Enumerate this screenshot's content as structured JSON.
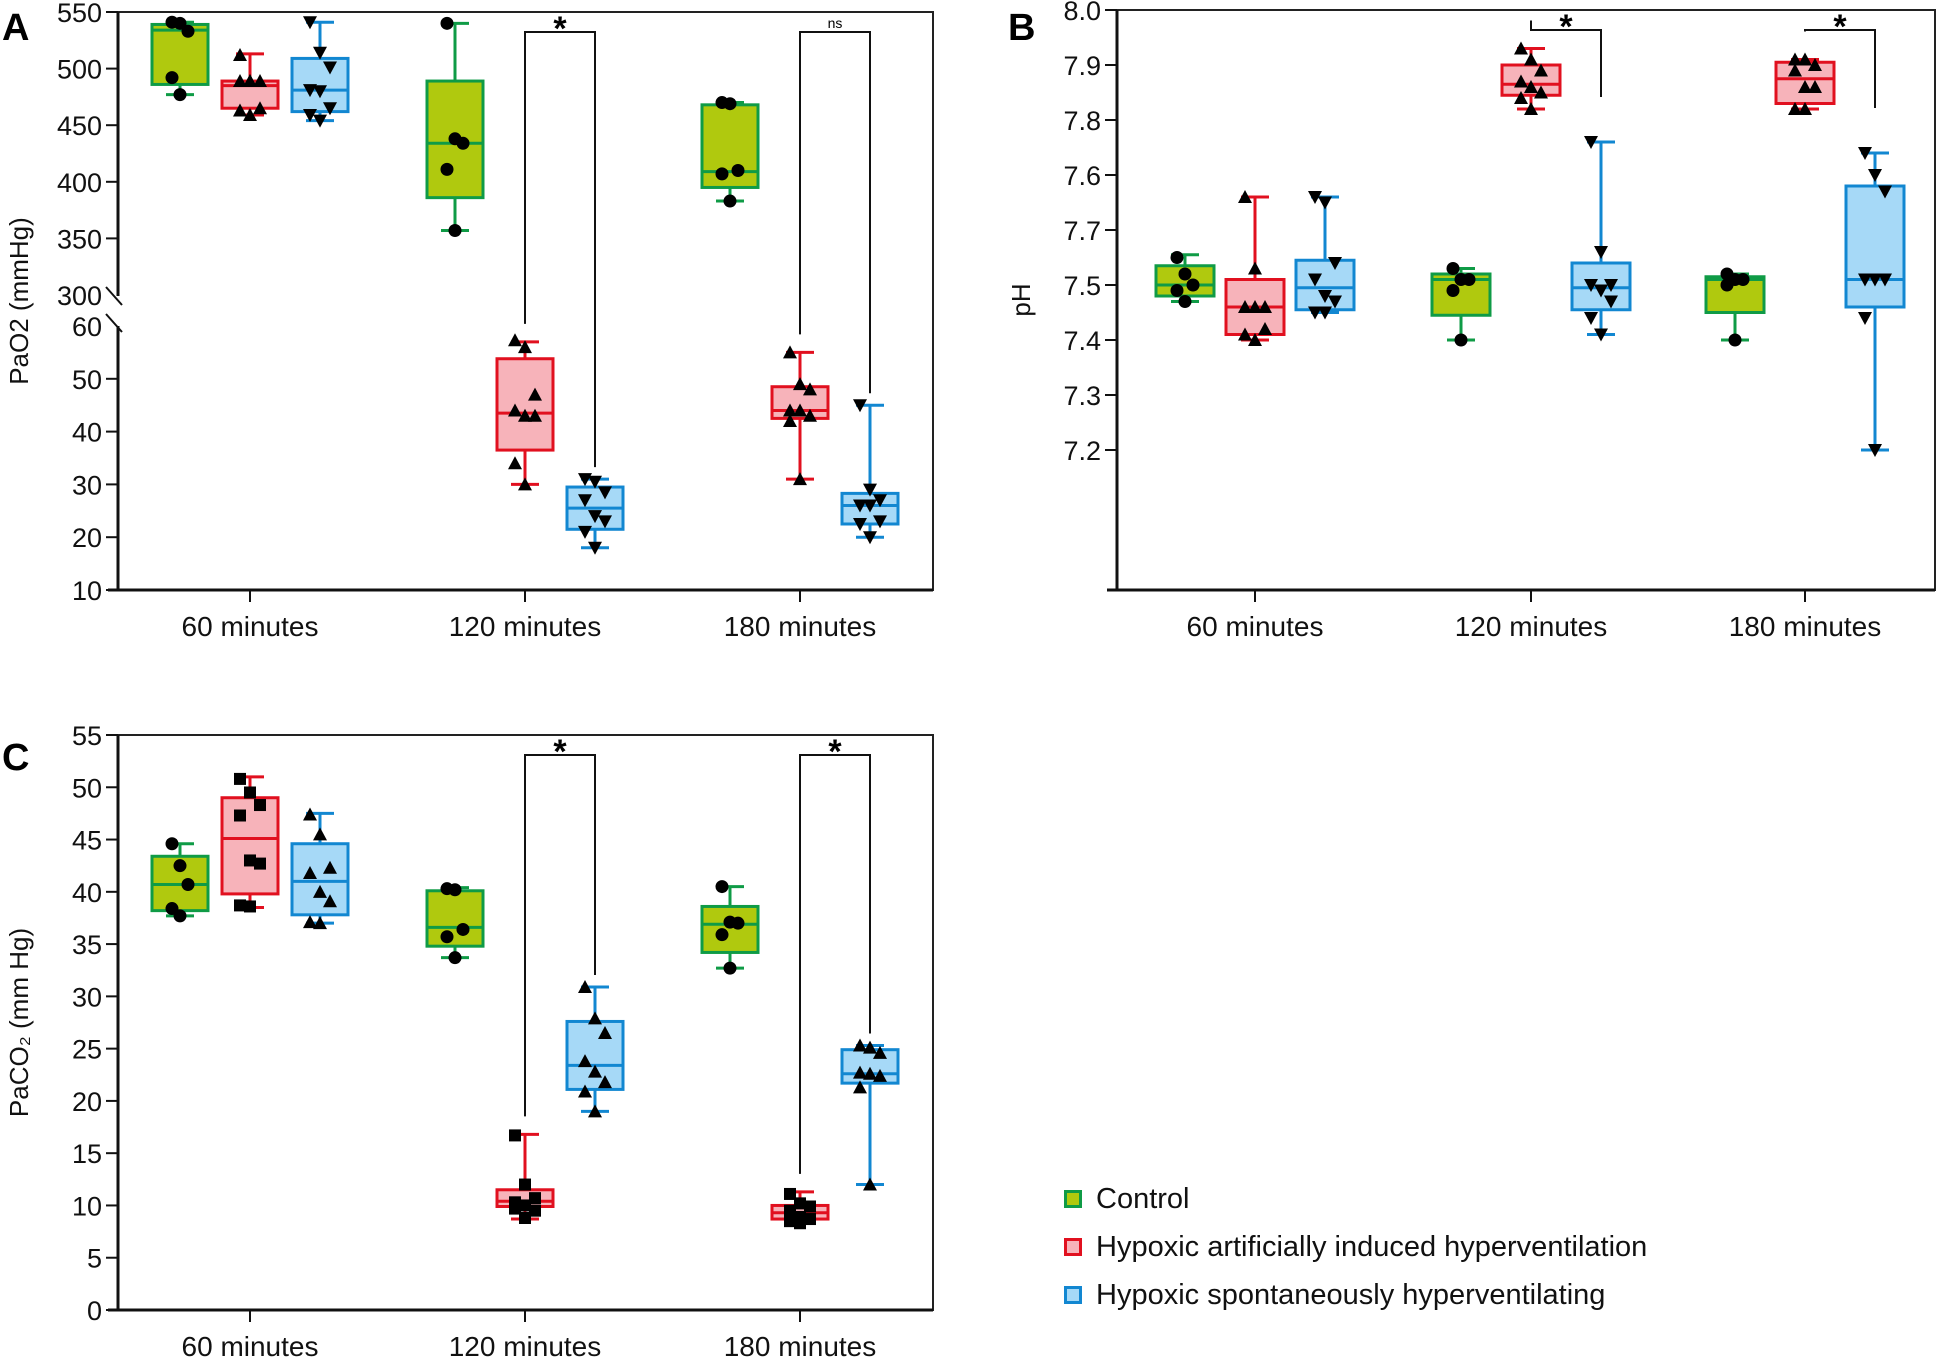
{
  "groups": [
    {
      "name": "Control",
      "fill": "#b0c90e",
      "stroke": "#0f9b46",
      "marker": "circle"
    },
    {
      "name": "Hypoxic artificially induced hyperventilation",
      "fill": "#f7b3ba",
      "stroke": "#e1101f",
      "marker": "triangle-up"
    },
    {
      "name": "Hypoxic spontaneously hyperventilating",
      "fill": "#a6d9f7",
      "stroke": "#1287d1",
      "marker": "triangle-down"
    }
  ],
  "legend": {
    "placement": "bottom-right",
    "items": [
      "Control",
      "Hypoxic artificially induced hyperventilation",
      "Hypoxic spontaneously hyperventilating"
    ]
  },
  "chart_data": [
    {
      "panel": "A",
      "type": "box",
      "title": "",
      "xlabel": "",
      "ylabel": "PaO2 (mmHg)",
      "categories": [
        "60 minutes",
        "120 minutes",
        "180 minutes"
      ],
      "axis_break": {
        "lower_range": [
          10,
          60
        ],
        "upper_range": [
          300,
          550
        ]
      },
      "yticks_lower": [
        "10",
        "20",
        "30",
        "40",
        "50",
        "60"
      ],
      "yticks_upper": [
        "300",
        "350",
        "400",
        "450",
        "500",
        "550"
      ],
      "series": [
        {
          "name": "Control",
          "boxes": [
            {
              "min": 477,
              "q1": 486,
              "median": 534,
              "q3": 539,
              "max": 541,
              "points": [
                541,
                540,
                533,
                492,
                477
              ]
            },
            {
              "min": 357,
              "q1": 386,
              "median": 434,
              "q3": 489,
              "max": 540,
              "points": [
                540,
                438,
                434,
                411,
                357
              ]
            },
            {
              "min": 383,
              "q1": 395,
              "median": 409,
              "q3": 468,
              "max": 470,
              "points": [
                470,
                469,
                410,
                407,
                383
              ]
            }
          ]
        },
        {
          "name": "Hypoxic artificially induced hyperventilation",
          "boxes": [
            {
              "min": 459,
              "q1": 465,
              "median": 485,
              "q3": 489,
              "max": 513,
              "points": [
                512,
                489,
                489,
                489,
                489,
                465,
                463,
                459
              ]
            },
            {
              "min": 30,
              "q1": 36.5,
              "median": 43.5,
              "q3": 53.8,
              "max": 57,
              "points": [
                57.3,
                56,
                47,
                44,
                43,
                43,
                34,
                30
              ]
            },
            {
              "min": 31,
              "q1": 42.5,
              "median": 44,
              "q3": 48.5,
              "max": 55,
              "points": [
                55,
                49,
                48,
                44,
                44,
                43,
                42,
                31
              ]
            }
          ]
        },
        {
          "name": "Hypoxic spontaneously hyperventilating",
          "boxes": [
            {
              "min": 454,
              "q1": 462,
              "median": 481,
              "q3": 509,
              "max": 541,
              "points": [
                541,
                514,
                501,
                481,
                480,
                465,
                459,
                454
              ]
            },
            {
              "min": 18,
              "q1": 21.5,
              "median": 25.5,
              "q3": 29.5,
              "max": 31,
              "points": [
                31,
                30.5,
                28.5,
                27,
                24,
                23,
                21,
                18
              ]
            },
            {
              "min": 20,
              "q1": 22.5,
              "median": 26,
              "q3": 28.3,
              "max": 45,
              "points": [
                45,
                29,
                27,
                26,
                26,
                23,
                22.5,
                20
              ]
            }
          ]
        }
      ],
      "annotations": [
        {
          "category": "120 minutes",
          "between": [
            "Hypoxic artificially induced hyperventilation",
            "Hypoxic spontaneously hyperventilating"
          ],
          "label": "*"
        },
        {
          "category": "180 minutes",
          "between": [
            "Hypoxic artificially induced hyperventilation",
            "Hypoxic spontaneously hyperventilating"
          ],
          "label": "ns"
        }
      ]
    },
    {
      "panel": "B",
      "type": "box",
      "title": "",
      "xlabel": "",
      "ylabel": "pH",
      "categories": [
        "60 minutes",
        "120 minutes",
        "180 minutes"
      ],
      "yticks": [
        "8.0",
        "7.9",
        "7.8",
        "7.6",
        "7.7",
        "7.5",
        "7.4",
        "7.3",
        "7.2"
      ],
      "ylim": [
        7.15,
        8.0
      ],
      "series": [
        {
          "name": "Control",
          "boxes": [
            {
              "min": 7.47,
              "q1": 7.48,
              "median": 7.5,
              "q3": 7.535,
              "max": 7.555,
              "points": [
                7.55,
                7.52,
                7.5,
                7.49,
                7.47
              ]
            },
            {
              "min": 7.4,
              "q1": 7.445,
              "median": 7.51,
              "q3": 7.52,
              "max": 7.53,
              "points": [
                7.53,
                7.51,
                7.51,
                7.49,
                7.4
              ]
            },
            {
              "min": 7.4,
              "q1": 7.45,
              "median": 7.51,
              "q3": 7.515,
              "max": 7.52,
              "points": [
                7.52,
                7.51,
                7.51,
                7.5,
                7.4
              ]
            }
          ]
        },
        {
          "name": "Hypoxic artificially induced hyperventilation",
          "boxes": [
            {
              "min": 7.4,
              "q1": 7.41,
              "median": 7.46,
              "q3": 7.51,
              "max": 7.66,
              "points": [
                7.66,
                7.53,
                7.46,
                7.46,
                7.46,
                7.42,
                7.41,
                7.4
              ]
            },
            {
              "min": 7.82,
              "q1": 7.845,
              "median": 7.865,
              "q3": 7.9,
              "max": 7.93,
              "points": [
                7.93,
                7.91,
                7.89,
                7.87,
                7.86,
                7.85,
                7.84,
                7.82
              ]
            },
            {
              "min": 7.82,
              "q1": 7.83,
              "median": 7.875,
              "q3": 7.905,
              "max": 7.91,
              "points": [
                7.91,
                7.91,
                7.9,
                7.89,
                7.86,
                7.86,
                7.82,
                7.82
              ]
            }
          ]
        },
        {
          "name": "Hypoxic spontaneously hyperventilating",
          "boxes": [
            {
              "min": 7.45,
              "q1": 7.455,
              "median": 7.495,
              "q3": 7.545,
              "max": 7.66,
              "points": [
                7.66,
                7.65,
                7.54,
                7.51,
                7.48,
                7.47,
                7.45,
                7.45
              ]
            },
            {
              "min": 7.41,
              "q1": 7.455,
              "median": 7.495,
              "q3": 7.54,
              "max": 7.76,
              "points": [
                7.76,
                7.56,
                7.5,
                7.5,
                7.49,
                7.47,
                7.44,
                7.41
              ]
            },
            {
              "min": 7.2,
              "q1": 7.46,
              "median": 7.51,
              "q3": 7.68,
              "max": 7.74,
              "points": [
                7.74,
                7.7,
                7.67,
                7.51,
                7.51,
                7.51,
                7.44,
                7.2
              ]
            }
          ]
        }
      ],
      "annotations": [
        {
          "category": "120 minutes",
          "between": [
            "Hypoxic artificially induced hyperventilation",
            "Hypoxic spontaneously hyperventilating"
          ],
          "label": "*"
        },
        {
          "category": "180 minutes",
          "between": [
            "Hypoxic artificially induced hyperventilation",
            "Hypoxic spontaneously hyperventilating"
          ],
          "label": "*"
        }
      ]
    },
    {
      "panel": "C",
      "type": "box",
      "title": "",
      "xlabel": "",
      "ylabel": "PaCO₂ (mm Hg)",
      "categories": [
        "60 minutes",
        "120 minutes",
        "180 minutes"
      ],
      "yticks": [
        "0",
        "5",
        "10",
        "15",
        "20",
        "25",
        "30",
        "35",
        "40",
        "45",
        "50",
        "55"
      ],
      "ylim": [
        0,
        55
      ],
      "series": [
        {
          "name": "Control",
          "boxes": [
            {
              "min": 37.7,
              "q1": 38.2,
              "median": 40.7,
              "q3": 43.4,
              "max": 44.6,
              "points": [
                44.6,
                42.5,
                40.7,
                38.4,
                37.7
              ]
            },
            {
              "min": 33.7,
              "q1": 34.8,
              "median": 36.6,
              "q3": 40.1,
              "max": 40.4,
              "points": [
                40.3,
                40.2,
                36.4,
                35.7,
                33.7
              ]
            },
            {
              "min": 32.7,
              "q1": 34.2,
              "median": 36.9,
              "q3": 38.6,
              "max": 40.5,
              "points": [
                40.5,
                37.1,
                37.0,
                35.9,
                32.7
              ]
            }
          ]
        },
        {
          "name": "Hypoxic artificially induced hyperventilation",
          "boxes": [
            {
              "min": 38.5,
              "q1": 39.8,
              "median": 45.1,
              "q3": 49.0,
              "max": 51.0,
              "points": [
                50.8,
                49.5,
                48.3,
                47.3,
                43.0,
                42.7,
                38.7,
                38.6
              ]
            },
            {
              "min": 8.7,
              "q1": 9.9,
              "median": 10.4,
              "q3": 11.5,
              "max": 16.8,
              "points": [
                16.7,
                12.0,
                10.7,
                10.3,
                10.0,
                9.5,
                9.7,
                8.8
              ]
            },
            {
              "min": 8.3,
              "q1": 8.7,
              "median": 9.3,
              "q3": 10.0,
              "max": 11.3,
              "points": [
                11.1,
                10.2,
                9.9,
                9.5,
                8.9,
                8.7,
                8.5,
                8.3
              ]
            }
          ]
        },
        {
          "name": "Hypoxic spontaneously hyperventilating",
          "boxes": [
            {
              "min": 37.0,
              "q1": 37.8,
              "median": 41.0,
              "q3": 44.6,
              "max": 47.5,
              "points": [
                47.4,
                45.5,
                42.3,
                41.8,
                40.0,
                39.1,
                37.1,
                37.0
              ]
            },
            {
              "min": 19.0,
              "q1": 21.1,
              "median": 23.4,
              "q3": 27.6,
              "max": 30.9,
              "points": [
                30.9,
                27.9,
                26.5,
                23.8,
                22.8,
                21.8,
                20.9,
                19.0
              ]
            },
            {
              "min": 12.0,
              "q1": 21.7,
              "median": 22.6,
              "q3": 24.9,
              "max": 25.3,
              "points": [
                25.3,
                25.1,
                24.6,
                22.7,
                22.6,
                22.4,
                21.3,
                12.0
              ]
            }
          ]
        }
      ],
      "annotations": [
        {
          "category": "120 minutes",
          "between": [
            "Hypoxic artificially induced hyperventilation",
            "Hypoxic spontaneously hyperventilating"
          ],
          "label": "*"
        },
        {
          "category": "180 minutes",
          "between": [
            "Hypoxic artificially induced hyperventilation",
            "Hypoxic spontaneously hyperventilating"
          ],
          "label": "*"
        }
      ]
    }
  ]
}
